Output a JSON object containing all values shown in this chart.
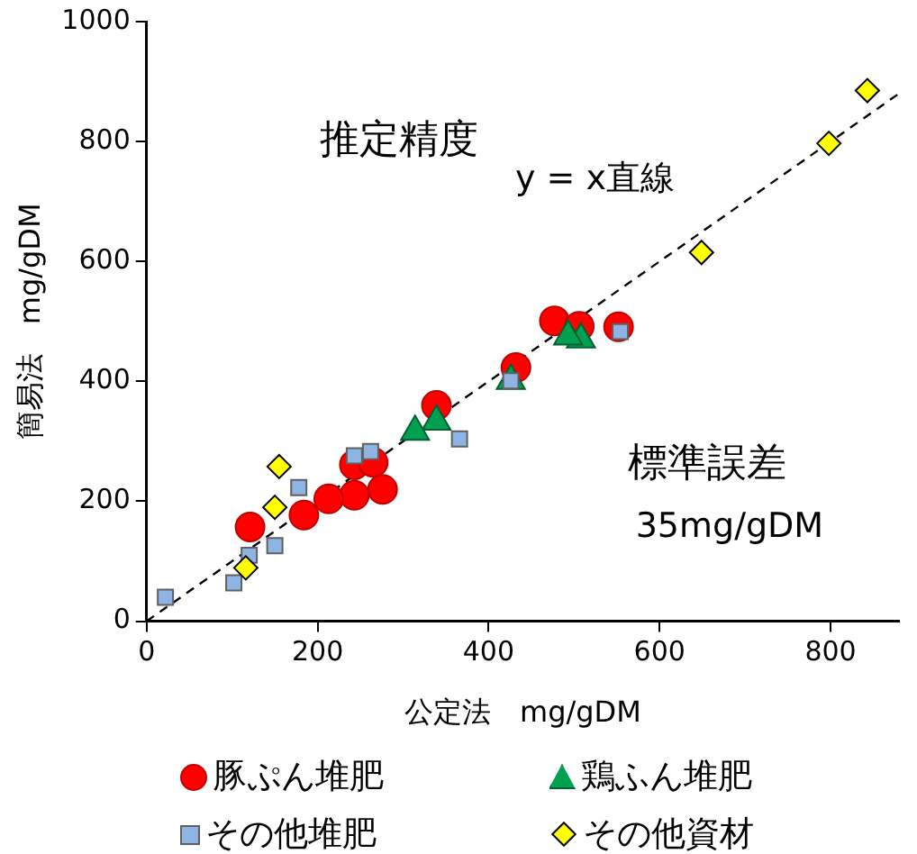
{
  "chart_data": {
    "type": "scatter",
    "xlabel": "公定法　mg/gDM",
    "ylabel": "簡易法　mg/gDM",
    "xlim": [
      0,
      880
    ],
    "xticks": [
      0,
      200,
      400,
      600,
      800
    ],
    "ylim": [
      0,
      1000
    ],
    "yticks": [
      0,
      200,
      400,
      600,
      800,
      1000
    ],
    "grid": false,
    "legend": "bottom",
    "annotations": [
      "推定精度\ny = x直線",
      "標準誤差\n35mg/gDM"
    ],
    "series": [
      {
        "type": "line",
        "line_style": "dashed",
        "marker": "none",
        "color": "#000000",
        "x": [
          0,
          880
        ],
        "values": [
          0,
          880
        ]
      },
      {
        "name": "豚ぷん堆肥",
        "marker": "circle",
        "color": "#ff0000",
        "x": [
          477,
          506,
          552,
          432,
          339,
          243,
          265,
          276,
          243,
          213,
          184,
          121
        ],
        "values": [
          501,
          492,
          491,
          423,
          360,
          261,
          265,
          220,
          210,
          204,
          177,
          157
        ]
      },
      {
        "name": "鶏ふん堆肥",
        "marker": "triangle",
        "color": "#00a050",
        "x": [
          508,
          493,
          426,
          339,
          314
        ],
        "values": [
          470,
          475,
          401,
          333,
          316
        ]
      },
      {
        "name": "その他堆肥",
        "marker": "square",
        "color": "#8db4e2",
        "x": [
          554,
          426,
          366,
          243,
          262,
          178,
          150,
          120,
          102,
          22
        ],
        "values": [
          483,
          401,
          304,
          276,
          283,
          223,
          126,
          110,
          64,
          40
        ]
      },
      {
        "name": "その他資材",
        "marker": "diamond",
        "color": "#ffff00",
        "x": [
          843,
          798,
          649,
          155,
          150,
          116
        ],
        "values": [
          885,
          797,
          615,
          258,
          190,
          89
        ]
      }
    ]
  }
}
